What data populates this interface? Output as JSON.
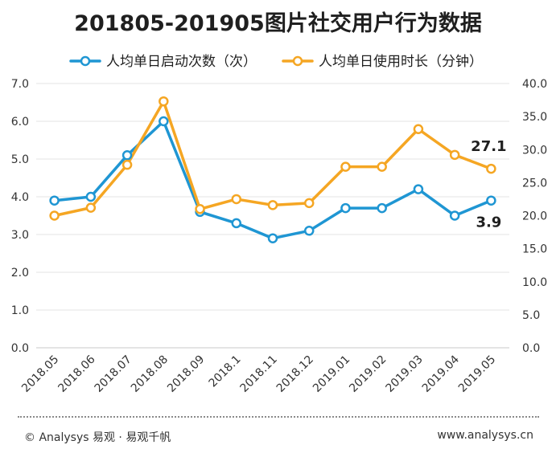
{
  "chart_data": {
    "type": "line",
    "title": "201805-201905图片社交用户行为数据",
    "categories": [
      "2018.05",
      "2018.06",
      "2018.07",
      "2018.08",
      "2018.09",
      "2018.1",
      "2018.11",
      "2018.12",
      "2019.01",
      "2019.02",
      "2019.03",
      "2019.04",
      "2019.05"
    ],
    "series": [
      {
        "name": "人均单日启动次数（次）",
        "axis": "left",
        "color": "#1f96d3",
        "values": [
          3.9,
          4.0,
          5.1,
          6.0,
          3.6,
          3.3,
          2.9,
          3.1,
          3.7,
          3.7,
          4.2,
          3.5,
          3.9
        ]
      },
      {
        "name": "人均单日使用时长（分钟）",
        "axis": "right",
        "color": "#f5a623",
        "values": [
          20.0,
          21.2,
          27.7,
          37.3,
          21.0,
          22.5,
          21.6,
          21.9,
          27.4,
          27.4,
          33.1,
          29.2,
          27.1
        ]
      }
    ],
    "y_left": {
      "ylim": [
        0,
        7
      ],
      "ticks": [
        "0.0",
        "1.0",
        "2.0",
        "3.0",
        "4.0",
        "5.0",
        "6.0",
        "7.0"
      ]
    },
    "y_right": {
      "ylim": [
        0,
        40
      ],
      "ticks": [
        "0.0",
        "5.0",
        "10.0",
        "15.0",
        "20.0",
        "25.0",
        "30.0",
        "35.0",
        "40.0"
      ]
    },
    "annotations": [
      {
        "text": "27.1",
        "series": 1,
        "index": 12
      },
      {
        "text": "3.9",
        "series": 0,
        "index": 12
      }
    ],
    "grid": true,
    "legend_position": "top"
  },
  "footer": {
    "left": "© Analysys 易观 · 易观千帆",
    "right": "www.analysys.cn"
  }
}
